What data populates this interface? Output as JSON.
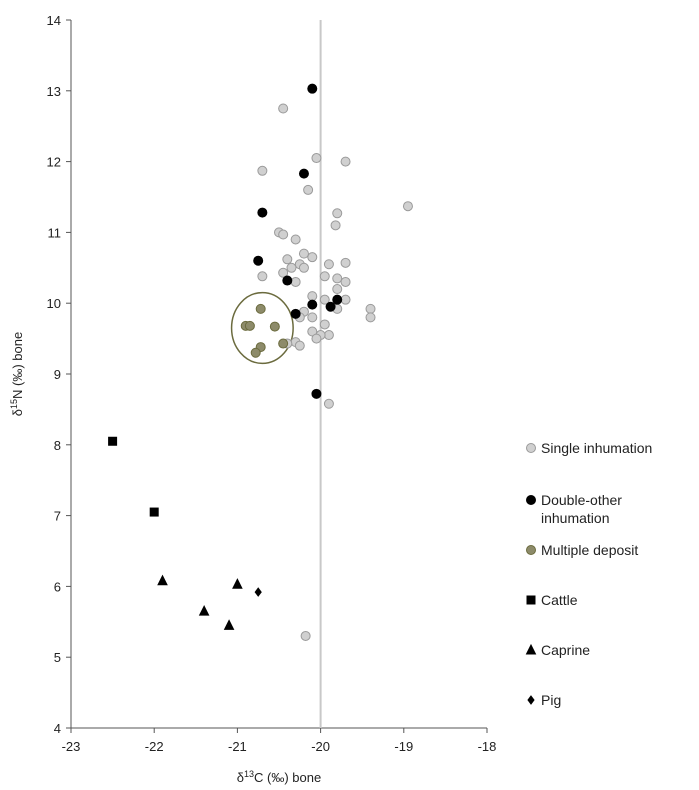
{
  "chart_data": {
    "type": "scatter",
    "xlabel": {
      "pre": "δ",
      "sup": "13",
      "post": "C (‰) bone"
    },
    "ylabel": {
      "pre": "δ",
      "sup": "15",
      "post": "N (‰) bone"
    },
    "xlim": [
      -23,
      -18
    ],
    "ylim": [
      4,
      14
    ],
    "x_ticks": [
      "-23",
      "-22",
      "-21",
      "-20",
      "-19",
      "-18"
    ],
    "y_ticks": [
      "4",
      "5",
      "6",
      "7",
      "8",
      "9",
      "10",
      "11",
      "12",
      "13",
      "14"
    ],
    "grid": false,
    "vertical_reference_line_x": -20,
    "legend_position": "right",
    "annotation": {
      "type": "ellipse",
      "center": [
        -20.7,
        9.65
      ],
      "radii": [
        0.37,
        0.5
      ],
      "color": "#6b6b3e"
    },
    "series": [
      {
        "name": [
          "Single inhumation"
        ],
        "marker": "circle",
        "fill": "#d0d0d0",
        "stroke": "#9a9a9a",
        "points": [
          [
            -20.45,
            12.75
          ],
          [
            -20.05,
            12.05
          ],
          [
            -19.7,
            12.0
          ],
          [
            -20.7,
            11.87
          ],
          [
            -20.15,
            11.6
          ],
          [
            -19.8,
            11.27
          ],
          [
            -19.82,
            11.1
          ],
          [
            -18.95,
            11.37
          ],
          [
            -20.5,
            11.0
          ],
          [
            -20.45,
            10.97
          ],
          [
            -20.3,
            10.9
          ],
          [
            -20.2,
            10.7
          ],
          [
            -20.1,
            10.65
          ],
          [
            -20.4,
            10.62
          ],
          [
            -20.25,
            10.55
          ],
          [
            -20.35,
            10.5
          ],
          [
            -20.2,
            10.5
          ],
          [
            -19.9,
            10.55
          ],
          [
            -19.7,
            10.57
          ],
          [
            -20.45,
            10.43
          ],
          [
            -20.7,
            10.38
          ],
          [
            -20.3,
            10.3
          ],
          [
            -19.95,
            10.38
          ],
          [
            -19.8,
            10.35
          ],
          [
            -19.7,
            10.3
          ],
          [
            -19.8,
            10.2
          ],
          [
            -20.1,
            10.1
          ],
          [
            -19.95,
            10.05
          ],
          [
            -19.7,
            10.05
          ],
          [
            -19.8,
            9.92
          ],
          [
            -19.4,
            9.92
          ],
          [
            -19.4,
            9.8
          ],
          [
            -20.2,
            9.88
          ],
          [
            -20.1,
            9.8
          ],
          [
            -20.25,
            9.8
          ],
          [
            -19.95,
            9.7
          ],
          [
            -20.1,
            9.6
          ],
          [
            -19.9,
            9.55
          ],
          [
            -20.0,
            9.55
          ],
          [
            -20.05,
            9.5
          ],
          [
            -20.3,
            9.45
          ],
          [
            -20.4,
            9.43
          ],
          [
            -20.25,
            9.4
          ],
          [
            -19.9,
            8.58
          ],
          [
            -20.18,
            5.3
          ]
        ]
      },
      {
        "name": [
          "Double-other",
          "inhumation"
        ],
        "marker": "circle",
        "fill": "#000000",
        "stroke": "#000000",
        "points": [
          [
            -20.1,
            13.03
          ],
          [
            -20.2,
            11.83
          ],
          [
            -20.7,
            11.28
          ],
          [
            -20.75,
            10.6
          ],
          [
            -20.4,
            10.32
          ],
          [
            -20.1,
            9.98
          ],
          [
            -19.8,
            10.05
          ],
          [
            -19.88,
            9.95
          ],
          [
            -20.3,
            9.85
          ],
          [
            -20.05,
            8.72
          ]
        ]
      },
      {
        "name": [
          "Multiple deposit"
        ],
        "marker": "circle",
        "fill": "#8d8b6a",
        "stroke": "#6b6b3e",
        "points": [
          [
            -20.72,
            9.92
          ],
          [
            -20.9,
            9.68
          ],
          [
            -20.85,
            9.68
          ],
          [
            -20.55,
            9.67
          ],
          [
            -20.72,
            9.38
          ],
          [
            -20.78,
            9.3
          ],
          [
            -20.45,
            9.43
          ]
        ]
      },
      {
        "name": [
          "Cattle"
        ],
        "marker": "square",
        "fill": "#000000",
        "stroke": "#000000",
        "points": [
          [
            -22.5,
            8.05
          ],
          [
            -22.0,
            7.05
          ]
        ]
      },
      {
        "name": [
          "Caprine"
        ],
        "marker": "triangle",
        "fill": "#000000",
        "stroke": "#000000",
        "points": [
          [
            -21.9,
            6.08
          ],
          [
            -21.0,
            6.03
          ],
          [
            -21.4,
            5.65
          ],
          [
            -21.1,
            5.45
          ]
        ]
      },
      {
        "name": [
          "Pig"
        ],
        "marker": "diamond",
        "fill": "#000000",
        "stroke": "#000000",
        "points": [
          [
            -20.75,
            5.92
          ]
        ]
      }
    ]
  }
}
